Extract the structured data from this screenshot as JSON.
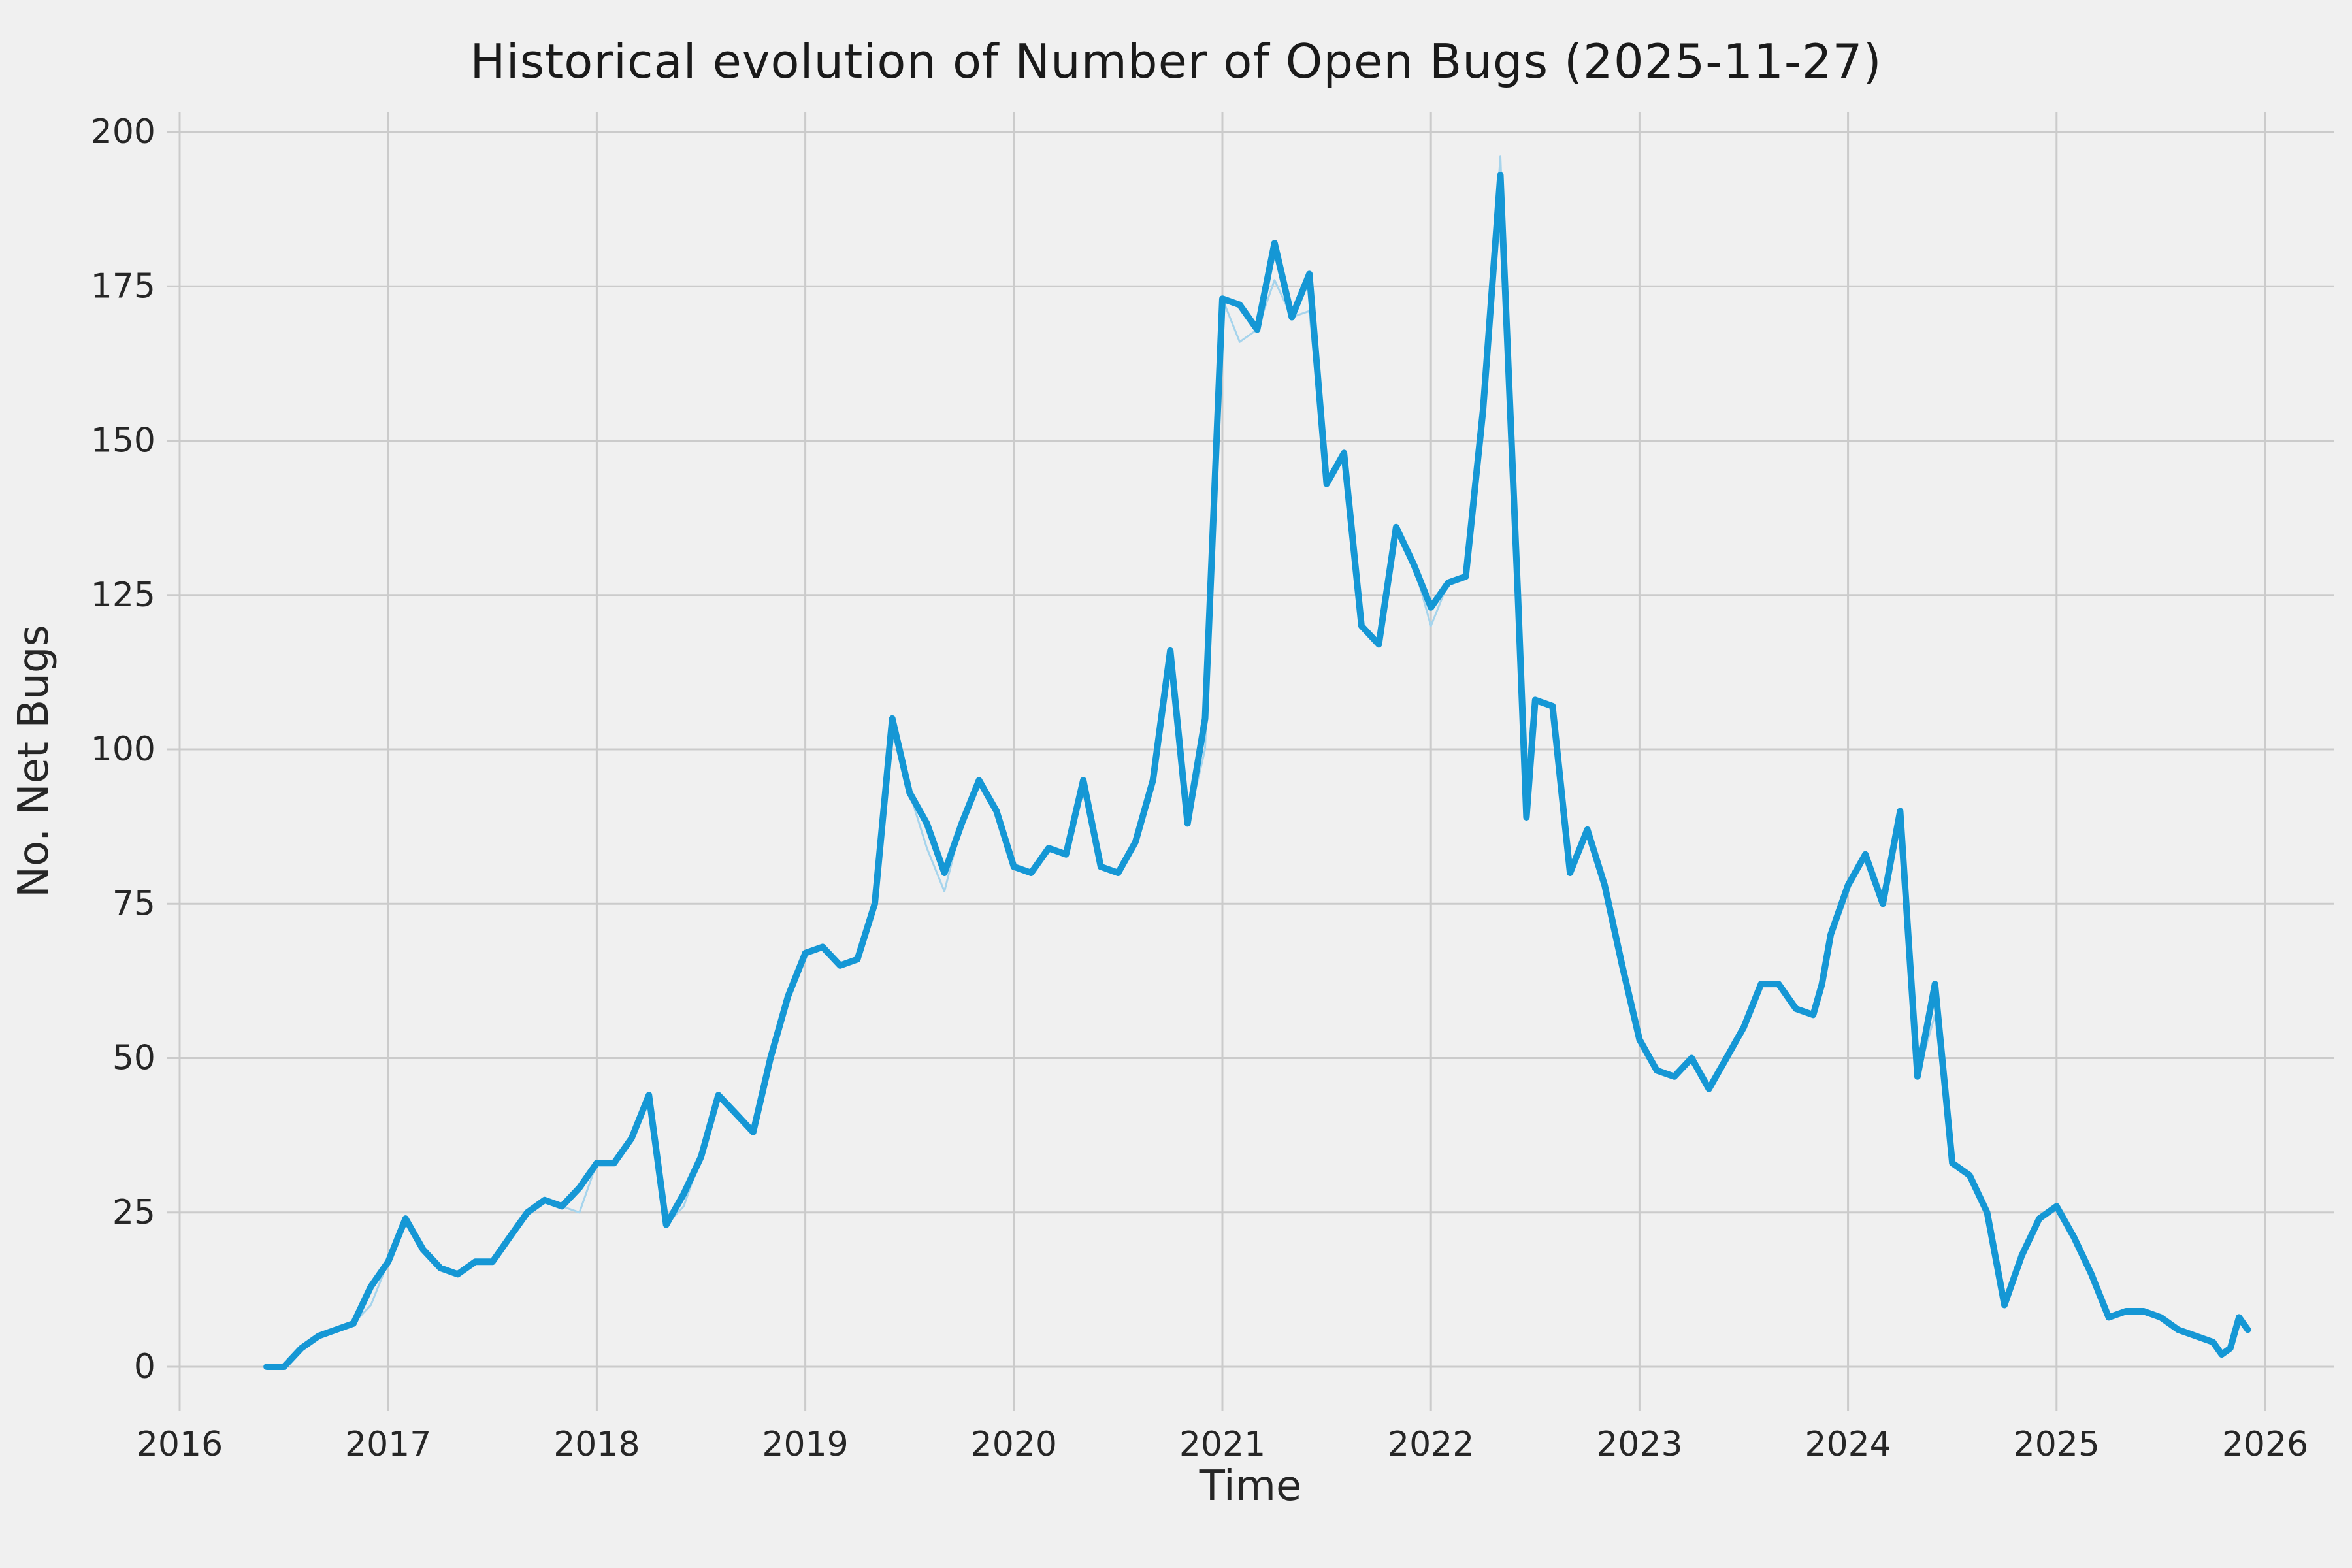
{
  "colors": {
    "background": "#f0f0f0",
    "grid": "#cbcbcb",
    "tick_text": "#262626",
    "title_text": "#1a1a1a",
    "line_main": "#1597d5",
    "line_raw": "#a6d4ec"
  },
  "chart_data": {
    "type": "line",
    "title": "Historical evolution of Number of Open Bugs (2025-11-27)",
    "xlabel": "Time",
    "ylabel": "No. Net Bugs",
    "xlim": [
      2015.94,
      2026.33
    ],
    "ylim": [
      -7,
      203
    ],
    "xticks": [
      2016,
      2017,
      2018,
      2019,
      2020,
      2021,
      2022,
      2023,
      2024,
      2025,
      2026
    ],
    "yticks": [
      0,
      25,
      50,
      75,
      100,
      125,
      150,
      175,
      200
    ],
    "grid": true,
    "legend": false,
    "series": [
      {
        "name": "open-bugs",
        "role": "main",
        "width": 10,
        "points": [
          [
            2016.417,
            0
          ],
          [
            2016.5,
            0
          ],
          [
            2016.583,
            3
          ],
          [
            2016.667,
            5
          ],
          [
            2016.75,
            6
          ],
          [
            2016.833,
            7
          ],
          [
            2016.917,
            13
          ],
          [
            2017,
            17
          ],
          [
            2017.083,
            24
          ],
          [
            2017.167,
            19
          ],
          [
            2017.25,
            16
          ],
          [
            2017.333,
            15
          ],
          [
            2017.417,
            17
          ],
          [
            2017.5,
            17
          ],
          [
            2017.583,
            21
          ],
          [
            2017.667,
            25
          ],
          [
            2017.75,
            27
          ],
          [
            2017.833,
            26
          ],
          [
            2017.917,
            29
          ],
          [
            2018,
            33
          ],
          [
            2018.083,
            33
          ],
          [
            2018.167,
            37
          ],
          [
            2018.25,
            44
          ],
          [
            2018.333,
            23
          ],
          [
            2018.417,
            28
          ],
          [
            2018.5,
            34
          ],
          [
            2018.583,
            44
          ],
          [
            2018.667,
            41
          ],
          [
            2018.75,
            38
          ],
          [
            2018.833,
            50
          ],
          [
            2018.917,
            60
          ],
          [
            2019,
            67
          ],
          [
            2019.083,
            68
          ],
          [
            2019.167,
            65
          ],
          [
            2019.25,
            66
          ],
          [
            2019.333,
            75
          ],
          [
            2019.417,
            105
          ],
          [
            2019.5,
            93
          ],
          [
            2019.583,
            88
          ],
          [
            2019.667,
            80
          ],
          [
            2019.75,
            88
          ],
          [
            2019.833,
            95
          ],
          [
            2019.917,
            90
          ],
          [
            2020,
            81
          ],
          [
            2020.083,
            80
          ],
          [
            2020.167,
            84
          ],
          [
            2020.25,
            83
          ],
          [
            2020.333,
            95
          ],
          [
            2020.417,
            81
          ],
          [
            2020.5,
            80
          ],
          [
            2020.583,
            85
          ],
          [
            2020.667,
            95
          ],
          [
            2020.75,
            116
          ],
          [
            2020.833,
            88
          ],
          [
            2020.917,
            105
          ],
          [
            2021,
            173
          ],
          [
            2021.083,
            172
          ],
          [
            2021.167,
            168
          ],
          [
            2021.25,
            182
          ],
          [
            2021.333,
            170
          ],
          [
            2021.417,
            177
          ],
          [
            2021.5,
            143
          ],
          [
            2021.583,
            148
          ],
          [
            2021.667,
            120
          ],
          [
            2021.75,
            117
          ],
          [
            2021.833,
            136
          ],
          [
            2021.917,
            130
          ],
          [
            2022,
            123
          ],
          [
            2022.083,
            127
          ],
          [
            2022.167,
            128
          ],
          [
            2022.25,
            155
          ],
          [
            2022.333,
            193
          ],
          [
            2022.417,
            125
          ],
          [
            2022.458,
            89
          ],
          [
            2022.5,
            108
          ],
          [
            2022.583,
            107
          ],
          [
            2022.667,
            80
          ],
          [
            2022.75,
            87
          ],
          [
            2022.833,
            78
          ],
          [
            2022.917,
            65
          ],
          [
            2023,
            53
          ],
          [
            2023.083,
            48
          ],
          [
            2023.167,
            47
          ],
          [
            2023.25,
            50
          ],
          [
            2023.333,
            45
          ],
          [
            2023.417,
            50
          ],
          [
            2023.5,
            55
          ],
          [
            2023.583,
            62
          ],
          [
            2023.667,
            62
          ],
          [
            2023.75,
            58
          ],
          [
            2023.833,
            57
          ],
          [
            2023.875,
            62
          ],
          [
            2023.917,
            70
          ],
          [
            2024,
            78
          ],
          [
            2024.083,
            83
          ],
          [
            2024.167,
            75
          ],
          [
            2024.25,
            90
          ],
          [
            2024.333,
            47
          ],
          [
            2024.417,
            62
          ],
          [
            2024.5,
            33
          ],
          [
            2024.583,
            31
          ],
          [
            2024.667,
            25
          ],
          [
            2024.75,
            10
          ],
          [
            2024.833,
            18
          ],
          [
            2024.917,
            24
          ],
          [
            2025,
            26
          ],
          [
            2025.083,
            21
          ],
          [
            2025.167,
            15
          ],
          [
            2025.25,
            8
          ],
          [
            2025.333,
            9
          ],
          [
            2025.417,
            9
          ],
          [
            2025.5,
            8
          ],
          [
            2025.583,
            6
          ],
          [
            2025.667,
            5
          ],
          [
            2025.75,
            4
          ],
          [
            2025.792,
            2
          ],
          [
            2025.833,
            3
          ],
          [
            2025.875,
            8
          ],
          [
            2025.917,
            6
          ]
        ]
      },
      {
        "name": "open-bugs-raw",
        "role": "raw-underlay",
        "width": 3,
        "overrides": [
          [
            2016.917,
            10
          ],
          [
            2017.917,
            25
          ],
          [
            2018.417,
            26
          ],
          [
            2019.583,
            84
          ],
          [
            2019.667,
            77
          ],
          [
            2020.917,
            100
          ],
          [
            2021.083,
            166
          ],
          [
            2021.25,
            176
          ],
          [
            2021.417,
            171
          ],
          [
            2022,
            120
          ],
          [
            2022.333,
            196
          ],
          [
            2024.417,
            57
          ]
        ]
      }
    ]
  }
}
